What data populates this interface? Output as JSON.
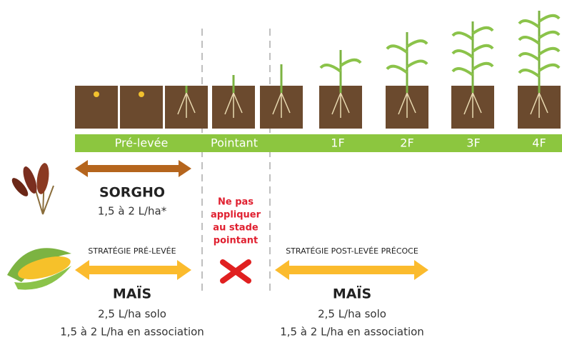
{
  "stages": [
    "Pré-levée",
    "Pointant",
    "1F",
    "2F",
    "3F",
    "4F"
  ],
  "sorgho": {
    "title": "SORGHO",
    "dose": "1,5 à 2 L/ha*"
  },
  "warning": [
    "Ne pas",
    "appliquer",
    "au stade",
    "pointant"
  ],
  "strategies": [
    {
      "label": "STRATÉGIE PRÉ-LEVÉE",
      "crop": "MAÏS",
      "doses": [
        "2,5 L/ha solo",
        "1,5 à 2 L/ha en association"
      ]
    },
    {
      "label": "STRATÉGIE POST-LEVÉE PRÉCOCE",
      "crop": "MAÏS",
      "doses": [
        "2,5 L/ha solo",
        "1,5 à 2 L/ha en association"
      ]
    }
  ]
}
